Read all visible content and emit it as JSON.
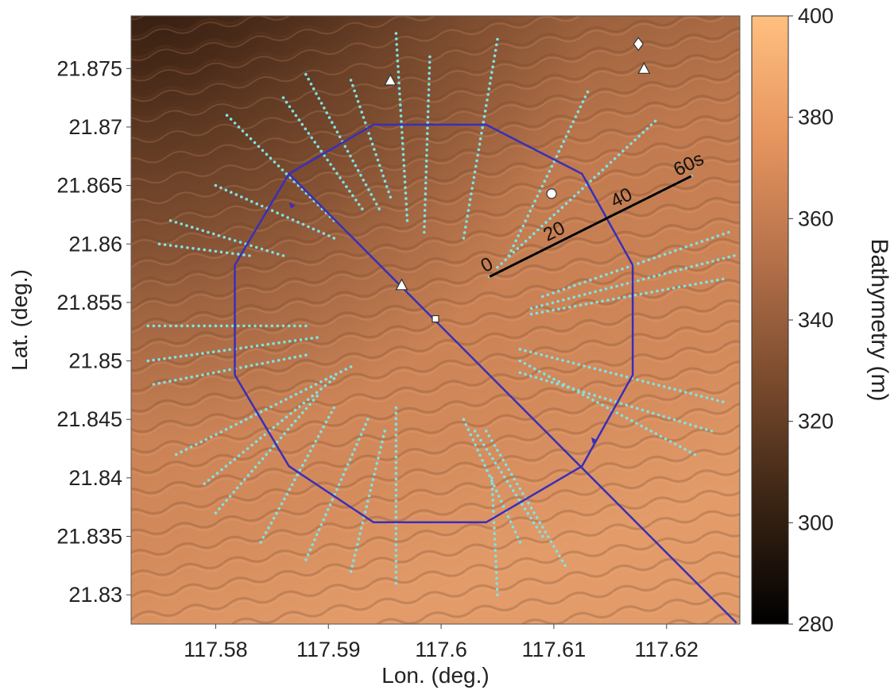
{
  "chart_data": {
    "type": "scatter",
    "xlabel": "Lon. (deg.)",
    "ylabel": "Lat. (deg.)",
    "xlim": [
      117.5725,
      117.6265
    ],
    "ylim": [
      21.8275,
      21.8795
    ],
    "xticks": [
      117.58,
      117.59,
      117.6,
      117.61,
      117.62
    ],
    "xtick_labels": [
      "117.58",
      "117.59",
      "117.6",
      "117.61",
      "117.62"
    ],
    "yticks": [
      21.83,
      21.835,
      21.84,
      21.845,
      21.85,
      21.855,
      21.86,
      21.865,
      21.87,
      21.875
    ],
    "ytick_labels": [
      "21.83",
      "21.835",
      "21.84",
      "21.845",
      "21.85",
      "21.855",
      "21.86",
      "21.865",
      "21.87",
      "21.875"
    ],
    "background": "bathymetry map with sand waves",
    "colorbar": {
      "label": "Bathymetry (m)",
      "range": [
        280,
        400
      ],
      "ticks": [
        280,
        300,
        320,
        340,
        360,
        380,
        400
      ],
      "tick_labels": [
        "280",
        "300",
        "320",
        "340",
        "360",
        "380",
        "400"
      ],
      "colors": [
        "#000000",
        "#3a2414",
        "#7a4b2d",
        "#b5714a",
        "#e6955f",
        "#ffbf7f"
      ]
    },
    "polygon": {
      "name": "survey track",
      "color": "#3a2fb8",
      "points": [
        [
          117.5865,
          21.866
        ],
        [
          117.594,
          21.8702
        ],
        [
          117.604,
          21.8702
        ],
        [
          117.6125,
          21.866
        ],
        [
          117.617,
          21.8582
        ],
        [
          117.617,
          21.8488
        ],
        [
          117.6125,
          21.841
        ],
        [
          117.604,
          21.8362
        ],
        [
          117.594,
          21.8362
        ],
        [
          117.5865,
          21.841
        ],
        [
          117.5817,
          21.8488
        ],
        [
          117.5817,
          21.8582
        ],
        [
          117.5865,
          21.866
        ]
      ]
    },
    "diagonal_line": {
      "color": "#3a2fb8",
      "points": [
        [
          117.5865,
          21.866
        ],
        [
          117.6262,
          21.8276
        ]
      ]
    },
    "arrow_markers": [
      [
        117.5868,
        21.8633
      ],
      [
        117.6136,
        21.8432
      ]
    ],
    "scale_bar": {
      "points": [
        [
          117.6043,
          21.8572
        ],
        [
          117.6222,
          21.8658
        ]
      ],
      "labels": [
        "0",
        "20",
        "40",
        "60s"
      ],
      "color": "#000000"
    },
    "markers": [
      {
        "shape": "triangle",
        "lon": 117.5955,
        "lat": 21.874
      },
      {
        "shape": "triangle",
        "lon": 117.618,
        "lat": 21.875
      },
      {
        "shape": "triangle",
        "lon": 117.5965,
        "lat": 21.8565
      },
      {
        "shape": "diamond",
        "lon": 117.6175,
        "lat": 21.8771
      },
      {
        "shape": "circle",
        "lon": 117.6098,
        "lat": 21.8643
      },
      {
        "shape": "square",
        "lon": 117.5995,
        "lat": 21.8536
      }
    ],
    "point_color": "#7fe3e6",
    "point_lines": [
      {
        "start": [
          117.6043,
          21.8572
        ],
        "end": [
          117.6222,
          21.8658
        ]
      },
      {
        "start": [
          117.605,
          21.858
        ],
        "end": [
          117.619,
          21.8705
        ]
      },
      {
        "start": [
          117.606,
          21.859
        ],
        "end": [
          117.613,
          21.873
        ]
      },
      {
        "start": [
          117.602,
          21.8605
        ],
        "end": [
          117.605,
          21.8775
        ]
      },
      {
        "start": [
          117.5985,
          21.861
        ],
        "end": [
          117.599,
          21.876
        ]
      },
      {
        "start": [
          117.597,
          21.862
        ],
        "end": [
          117.596,
          21.878
        ]
      },
      {
        "start": [
          117.5955,
          21.864
        ],
        "end": [
          117.592,
          21.874
        ]
      },
      {
        "start": [
          117.5945,
          21.863
        ],
        "end": [
          117.588,
          21.8745
        ]
      },
      {
        "start": [
          117.593,
          21.863
        ],
        "end": [
          117.586,
          21.8725
        ]
      },
      {
        "start": [
          117.5905,
          21.862
        ],
        "end": [
          117.581,
          21.871
        ]
      },
      {
        "start": [
          117.5905,
          21.8605
        ],
        "end": [
          117.58,
          21.865
        ]
      },
      {
        "start": [
          117.586,
          21.859
        ],
        "end": [
          117.576,
          21.862
        ]
      },
      {
        "start": [
          117.583,
          21.859
        ],
        "end": [
          117.575,
          21.86
        ]
      },
      {
        "start": [
          117.588,
          21.853
        ],
        "end": [
          117.574,
          21.853
        ]
      },
      {
        "start": [
          117.589,
          21.852
        ],
        "end": [
          117.574,
          21.85
        ]
      },
      {
        "start": [
          117.588,
          21.8505
        ],
        "end": [
          117.5745,
          21.848
        ]
      },
      {
        "start": [
          117.592,
          21.8495
        ],
        "end": [
          117.5765,
          21.842
        ]
      },
      {
        "start": [
          117.5905,
          21.8485
        ],
        "end": [
          117.579,
          21.8395
        ]
      },
      {
        "start": [
          117.589,
          21.847
        ],
        "end": [
          117.58,
          21.837
        ]
      },
      {
        "start": [
          117.5905,
          21.846
        ],
        "end": [
          117.584,
          21.8345
        ]
      },
      {
        "start": [
          117.5935,
          21.845
        ],
        "end": [
          117.588,
          21.833
        ]
      },
      {
        "start": [
          117.595,
          21.844
        ],
        "end": [
          117.592,
          21.832
        ]
      },
      {
        "start": [
          117.596,
          21.846
        ],
        "end": [
          117.596,
          21.831
        ]
      },
      {
        "start": [
          117.602,
          21.845
        ],
        "end": [
          117.607,
          21.8345
        ]
      },
      {
        "start": [
          117.603,
          21.844
        ],
        "end": [
          117.609,
          21.835
        ]
      },
      {
        "start": [
          117.604,
          21.844
        ],
        "end": [
          117.611,
          21.8325
        ]
      },
      {
        "start": [
          117.6045,
          21.84
        ],
        "end": [
          117.605,
          21.83
        ]
      },
      {
        "start": [
          117.607,
          21.85
        ],
        "end": [
          117.6225,
          21.842
        ]
      },
      {
        "start": [
          117.607,
          21.849
        ],
        "end": [
          117.624,
          21.844
        ]
      },
      {
        "start": [
          117.607,
          21.851
        ],
        "end": [
          117.625,
          21.8465
        ]
      },
      {
        "start": [
          117.608,
          21.854
        ],
        "end": [
          117.625,
          21.857
        ]
      },
      {
        "start": [
          117.608,
          21.8545
        ],
        "end": [
          117.626,
          21.859
        ]
      },
      {
        "start": [
          117.609,
          21.8555
        ],
        "end": [
          117.6255,
          21.861
        ]
      }
    ]
  }
}
